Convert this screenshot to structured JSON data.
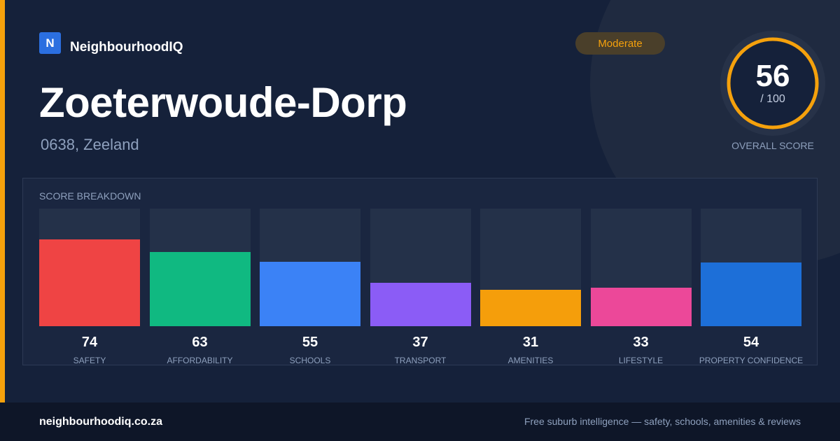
{
  "brand": {
    "logo_letter": "N",
    "name": "NeighbourhoodIQ"
  },
  "badge": {
    "label": "Moderate",
    "color": "#f5a10c"
  },
  "location": {
    "name": "Zoeterwoude-Dorp",
    "subtitle": "0638, Zeeland"
  },
  "score": {
    "value": "56",
    "denominator": "/ 100",
    "label": "OVERALL SCORE",
    "ring_color": "#f5a10c"
  },
  "breakdown": {
    "title": "SCORE BREAKDOWN",
    "max": 100,
    "items": [
      {
        "label": "SAFETY",
        "value": 74,
        "color": "#ef4444"
      },
      {
        "label": "AFFORDABILITY",
        "value": 63,
        "color": "#10b981"
      },
      {
        "label": "SCHOOLS",
        "value": 55,
        "color": "#3b82f6"
      },
      {
        "label": "TRANSPORT",
        "value": 37,
        "color": "#8b5cf6"
      },
      {
        "label": "AMENITIES",
        "value": 31,
        "color": "#f59e0b"
      },
      {
        "label": "LIFESTYLE",
        "value": 33,
        "color": "#ec4899"
      },
      {
        "label": "PROPERTY CONFIDENCE",
        "value": 54,
        "color": "#1d6fd8"
      }
    ]
  },
  "footer": {
    "url": "neighbourhoodiq.co.za",
    "tagline": "Free suburb intelligence — safety, schools, amenities & reviews"
  }
}
